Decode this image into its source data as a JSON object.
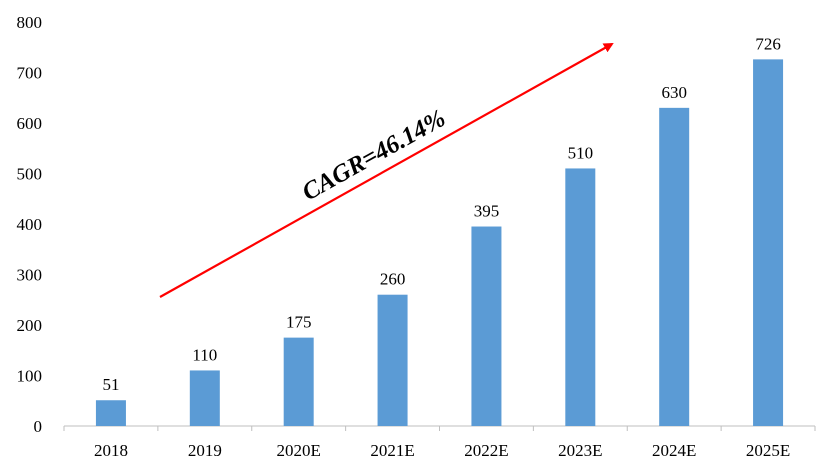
{
  "chart_data": {
    "type": "bar",
    "categories": [
      "2018",
      "2019",
      "2020E",
      "2021E",
      "2022E",
      "2023E",
      "2024E",
      "2025E"
    ],
    "values": [
      51,
      110,
      175,
      260,
      395,
      510,
      630,
      726
    ],
    "title": "",
    "xlabel": "",
    "ylabel": "",
    "ylim": [
      0,
      800
    ],
    "yticks": [
      "0",
      "100",
      "200",
      "300",
      "400",
      "500",
      "600",
      "700",
      "800"
    ],
    "grid": false,
    "legend": "none",
    "bar_color": "#5B9BD5",
    "data_labels": [
      "51",
      "110",
      "175",
      "260",
      "395",
      "510",
      "630",
      "726"
    ],
    "annotations": [
      {
        "text": "CAGR=46.14%",
        "arrow_color": "#FF0000"
      }
    ]
  }
}
